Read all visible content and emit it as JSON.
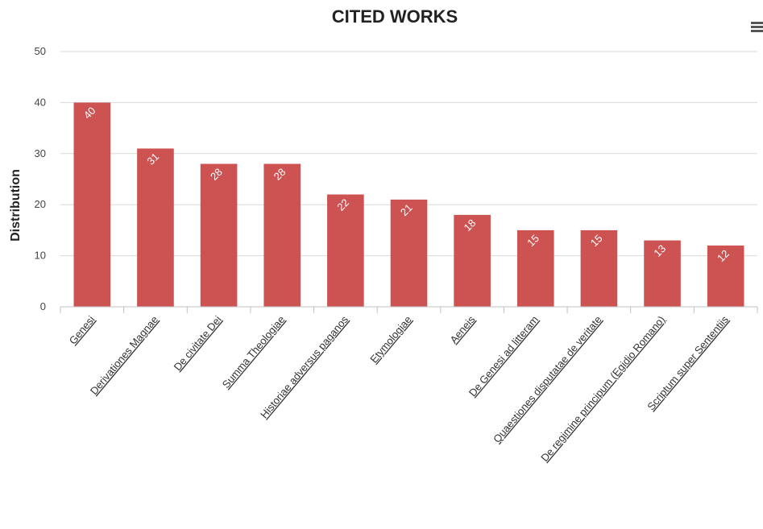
{
  "chart_data": {
    "type": "bar",
    "title": "CITED WORKS",
    "xlabel": "",
    "ylabel": "Distribution",
    "ylim": [
      0,
      50
    ],
    "yticks": [
      0,
      10,
      20,
      30,
      40,
      50
    ],
    "grid": true,
    "legend": "none",
    "bar_color": "#cd5353",
    "categories": [
      "Genesi",
      "Derivationes Magnae",
      "De civitate Dei",
      "Summa Theologiae",
      "Historiae adversus paganos",
      "Etymologiae",
      "Aeneis",
      "De Genesi ad litteram",
      "Quaestiones disputatae de veritate",
      "De regimine principum (Egidio Romano)",
      "Scriptum super Sententiis"
    ],
    "values": [
      40,
      31,
      28,
      28,
      22,
      21,
      18,
      15,
      15,
      13,
      12
    ]
  },
  "colors": {
    "bar": "#cd5353",
    "grid": "#d9d9d9",
    "text": "#222222",
    "menu_icon": "#555555"
  },
  "toolbar": {
    "menu_icon": "hamburger-menu-icon"
  }
}
